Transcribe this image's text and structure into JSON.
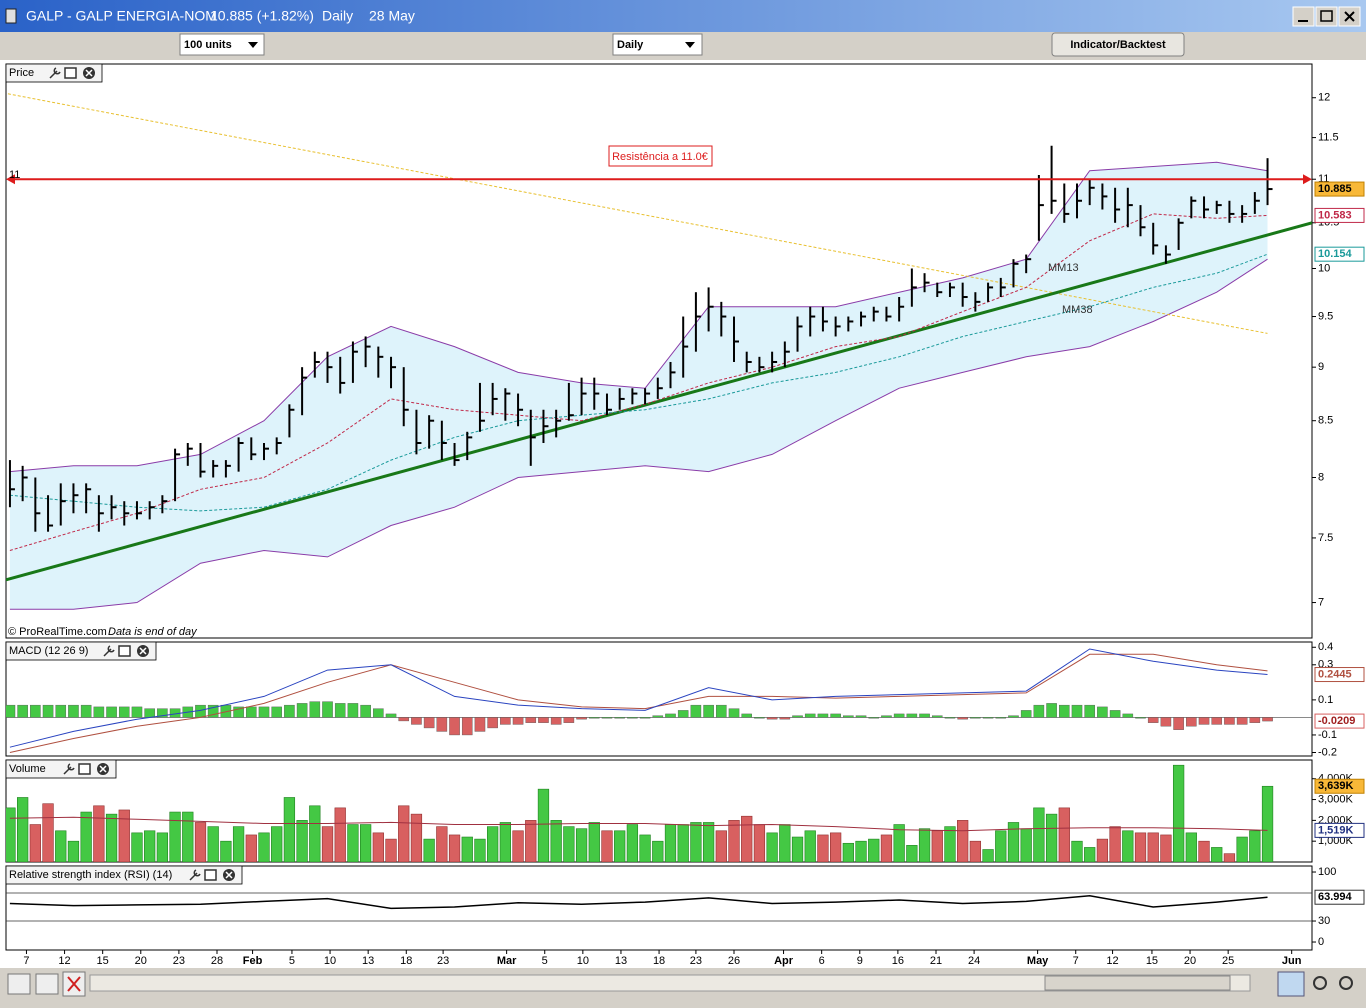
{
  "window": {
    "symbol": "GALP - GALP ENERGIA-NOM",
    "quote": "10.885 (+1.82%)",
    "period": "Daily",
    "date": "28 May"
  },
  "toolbar": {
    "units": "100 units",
    "period": "Daily",
    "button": "Indicator/Backtest"
  },
  "x_axis": {
    "xlim": [
      -0.31,
      102.5
    ],
    "xticks": [
      {
        "value": 1.3,
        "label": "7"
      },
      {
        "value": 4.3,
        "label": "12"
      },
      {
        "value": 7.3,
        "label": "15"
      },
      {
        "value": 10.3,
        "label": "20"
      },
      {
        "value": 13.3,
        "label": "23"
      },
      {
        "value": 16.3,
        "label": "28"
      },
      {
        "value": 19.1,
        "label": "Feb"
      },
      {
        "value": 22.2,
        "label": "5"
      },
      {
        "value": 25.2,
        "label": "10"
      },
      {
        "value": 28.2,
        "label": "13"
      },
      {
        "value": 31.2,
        "label": "18"
      },
      {
        "value": 34.1,
        "label": "23"
      },
      {
        "value": 39.1,
        "label": "Mar"
      },
      {
        "value": 42.1,
        "label": "5"
      },
      {
        "value": 45.1,
        "label": "10"
      },
      {
        "value": 48.1,
        "label": "13"
      },
      {
        "value": 51.1,
        "label": "18"
      },
      {
        "value": 54.0,
        "label": "23"
      },
      {
        "value": 57.0,
        "label": "26"
      },
      {
        "value": 60.9,
        "label": "Apr"
      },
      {
        "value": 63.9,
        "label": "6"
      },
      {
        "value": 66.9,
        "label": "9"
      },
      {
        "value": 69.9,
        "label": "16"
      },
      {
        "value": 72.9,
        "label": "21"
      },
      {
        "value": 75.9,
        "label": "24"
      },
      {
        "value": 80.9,
        "label": "May"
      },
      {
        "value": 83.9,
        "label": "7"
      },
      {
        "value": 86.8,
        "label": "12"
      },
      {
        "value": 89.9,
        "label": "15"
      },
      {
        "value": 92.9,
        "label": "20"
      },
      {
        "value": 95.9,
        "label": "25"
      },
      {
        "value": 100.9,
        "label": "Jun"
      }
    ]
  },
  "chart_data": [
    {
      "type": "ohlc",
      "title": "Price",
      "log_scale": true,
      "ylim": [
        6.74,
        12.44
      ],
      "yticks": [
        7,
        7.5,
        8,
        8.5,
        9,
        9.5,
        10,
        10.5,
        11,
        11.5,
        12
      ],
      "color": "#000000",
      "high": [
        8.15,
        8.1,
        8.0,
        7.85,
        7.95,
        7.95,
        7.95,
        7.85,
        7.85,
        7.8,
        7.8,
        7.8,
        7.85,
        8.25,
        8.3,
        8.3,
        8.15,
        8.15,
        8.35,
        8.35,
        8.3,
        8.35,
        8.65,
        9.0,
        9.15,
        9.15,
        9.1,
        9.25,
        9.3,
        9.2,
        9.1,
        9.0,
        8.6,
        8.55,
        8.5,
        8.3,
        8.4,
        8.85,
        8.85,
        8.8,
        8.75,
        8.6,
        8.6,
        8.6,
        8.85,
        8.9,
        8.9,
        8.75,
        8.8,
        8.8,
        8.8,
        8.9,
        9.05,
        9.5,
        9.75,
        9.8,
        9.65,
        9.5,
        9.15,
        9.1,
        9.15,
        9.25,
        9.5,
        9.6,
        9.6,
        9.5,
        9.5,
        9.55,
        9.6,
        9.6,
        9.7,
        10.0,
        9.95,
        9.85,
        9.85,
        9.85,
        9.75,
        9.85,
        9.9,
        10.1,
        10.15,
        11.05,
        11.4,
        10.95,
        10.95,
        11.0,
        10.95,
        10.9,
        10.9,
        10.7,
        10.5,
        10.25,
        10.55,
        10.8,
        10.8,
        10.75,
        10.75,
        10.7,
        10.85,
        11.25
      ],
      "low": [
        7.75,
        7.8,
        7.55,
        7.55,
        7.6,
        7.7,
        7.7,
        7.55,
        7.65,
        7.6,
        7.65,
        7.65,
        7.7,
        7.8,
        8.1,
        8.0,
        8.0,
        8.0,
        8.05,
        8.15,
        8.15,
        8.2,
        8.35,
        8.55,
        8.9,
        8.85,
        8.75,
        8.85,
        9.0,
        8.9,
        8.8,
        8.45,
        8.2,
        8.25,
        8.15,
        8.1,
        8.15,
        8.4,
        8.55,
        8.5,
        8.45,
        8.1,
        8.3,
        8.35,
        8.5,
        8.55,
        8.6,
        8.55,
        8.6,
        8.65,
        8.65,
        8.7,
        8.8,
        8.9,
        9.15,
        9.35,
        9.3,
        9.05,
        8.95,
        8.95,
        8.95,
        9.0,
        9.15,
        9.3,
        9.35,
        9.3,
        9.35,
        9.4,
        9.45,
        9.45,
        9.45,
        9.6,
        9.75,
        9.7,
        9.7,
        9.6,
        9.55,
        9.65,
        9.7,
        9.8,
        9.95,
        10.3,
        10.6,
        10.5,
        10.55,
        10.7,
        10.65,
        10.5,
        10.45,
        10.35,
        10.15,
        10.05,
        10.2,
        10.55,
        10.55,
        10.6,
        10.5,
        10.5,
        10.6,
        10.7
      ],
      "close": [
        7.9,
        8.0,
        7.7,
        7.6,
        7.8,
        7.85,
        7.9,
        7.7,
        7.75,
        7.7,
        7.7,
        7.75,
        7.8,
        8.2,
        8.25,
        8.05,
        8.1,
        8.1,
        8.3,
        8.2,
        8.25,
        8.3,
        8.6,
        8.9,
        9.05,
        9.0,
        8.85,
        9.15,
        9.2,
        9.1,
        9.0,
        8.6,
        8.3,
        8.5,
        8.3,
        8.15,
        8.35,
        8.5,
        8.7,
        8.75,
        8.6,
        8.35,
        8.45,
        8.5,
        8.55,
        8.75,
        8.75,
        8.6,
        8.7,
        8.75,
        8.75,
        8.8,
        8.95,
        9.2,
        9.5,
        9.6,
        9.5,
        9.25,
        9.05,
        9.0,
        9.05,
        9.15,
        9.4,
        9.5,
        9.45,
        9.4,
        9.45,
        9.5,
        9.55,
        9.5,
        9.6,
        9.8,
        9.85,
        9.75,
        9.8,
        9.7,
        9.65,
        9.8,
        9.8,
        10.05,
        10.1,
        10.7,
        10.75,
        10.6,
        10.75,
        10.9,
        10.8,
        10.65,
        10.7,
        10.45,
        10.25,
        10.15,
        10.5,
        10.75,
        10.65,
        10.7,
        10.6,
        10.6,
        10.75,
        10.885
      ],
      "bands": {
        "color": "#8a3ca8",
        "fill": "#def3fb",
        "x": [
          0,
          5,
          10,
          15,
          20,
          25,
          30,
          35,
          40,
          45,
          50,
          55,
          60,
          65,
          70,
          75,
          80,
          85,
          90,
          95,
          99
        ],
        "upper": [
          8.05,
          8.1,
          8.1,
          8.2,
          8.5,
          9.1,
          9.4,
          9.2,
          8.95,
          8.85,
          8.8,
          9.6,
          9.6,
          9.6,
          9.75,
          9.9,
          10.1,
          11.1,
          11.15,
          11.2,
          11.1
        ],
        "lower": [
          6.95,
          6.95,
          7.0,
          7.3,
          7.4,
          7.35,
          7.6,
          7.75,
          8.0,
          8.05,
          8.1,
          8.05,
          8.2,
          8.5,
          8.8,
          8.95,
          9.1,
          9.2,
          9.45,
          9.75,
          10.1
        ]
      },
      "moving_averages": [
        {
          "name": "MM13",
          "color": "#c02848",
          "x": [
            0,
            5,
            10,
            15,
            20,
            25,
            30,
            35,
            40,
            45,
            50,
            55,
            60,
            65,
            70,
            75,
            80,
            85,
            90,
            95,
            99
          ],
          "values": [
            7.4,
            7.55,
            7.7,
            7.9,
            8.0,
            8.3,
            8.7,
            8.6,
            8.55,
            8.5,
            8.65,
            8.85,
            9.0,
            9.2,
            9.3,
            9.55,
            9.8,
            10.3,
            10.6,
            10.55,
            10.583
          ]
        },
        {
          "name": "MM38",
          "color": "#1a9a9a",
          "x": [
            0,
            5,
            10,
            15,
            20,
            25,
            30,
            35,
            40,
            45,
            50,
            55,
            60,
            65,
            70,
            75,
            80,
            85,
            90,
            95,
            99
          ],
          "values": [
            7.85,
            7.8,
            7.75,
            7.72,
            7.75,
            7.9,
            8.15,
            8.35,
            8.5,
            8.55,
            8.6,
            8.7,
            8.85,
            8.95,
            9.1,
            9.3,
            9.45,
            9.6,
            9.8,
            9.95,
            10.154
          ]
        }
      ],
      "trend_lines": [
        {
          "color": "#e8c030",
          "x": [
            -0.16,
            99
          ],
          "values": [
            12.05,
            9.33
          ]
        },
        {
          "color": "#187818",
          "x": [
            -0.4,
            102.5
          ],
          "values": [
            7.17,
            10.5
          ]
        }
      ],
      "resistance": {
        "value": 11,
        "label": "Resistência a 11.0€",
        "color": "#dd1c1c"
      },
      "footer": {
        "source": "© ProRealTime.com",
        "note": "Data is end of day"
      }
    },
    {
      "type": "macd",
      "title": "MACD (12 26 9)",
      "ylim": [
        -0.22,
        0.43
      ],
      "yticks": [
        -0.2,
        -0.1,
        0.1,
        0.3,
        0.4
      ],
      "histogram": [
        0.07,
        0.07,
        0.07,
        0.07,
        0.07,
        0.07,
        0.07,
        0.06,
        0.06,
        0.06,
        0.06,
        0.05,
        0.05,
        0.05,
        0.06,
        0.07,
        0.07,
        0.07,
        0.06,
        0.06,
        0.06,
        0.06,
        0.07,
        0.08,
        0.09,
        0.09,
        0.08,
        0.08,
        0.07,
        0.05,
        0.02,
        -0.02,
        -0.04,
        -0.06,
        -0.08,
        -0.1,
        -0.1,
        -0.08,
        -0.06,
        -0.04,
        -0.04,
        -0.03,
        -0.03,
        -0.04,
        -0.03,
        -0.01,
        0.0,
        0.0,
        0.0,
        0.0,
        0.0,
        0.01,
        0.02,
        0.04,
        0.07,
        0.07,
        0.07,
        0.05,
        0.02,
        0.0,
        -0.01,
        -0.01,
        0.01,
        0.02,
        0.02,
        0.02,
        0.01,
        0.01,
        0.0,
        0.01,
        0.02,
        0.02,
        0.02,
        0.01,
        0.0,
        -0.01,
        0.0,
        0.0,
        0.0,
        0.01,
        0.04,
        0.07,
        0.08,
        0.07,
        0.07,
        0.07,
        0.06,
        0.04,
        0.02,
        0.0,
        -0.03,
        -0.05,
        -0.07,
        -0.05,
        -0.04,
        -0.04,
        -0.04,
        -0.04,
        -0.03,
        -0.0209
      ],
      "up_color": "#44c844",
      "down_color": "#d86060",
      "macd": {
        "color": "#2a44c0",
        "x": [
          0,
          5,
          10,
          15,
          20,
          25,
          30,
          35,
          40,
          45,
          50,
          55,
          60,
          65,
          70,
          75,
          80,
          85,
          90,
          95,
          99
        ],
        "values": [
          -0.17,
          -0.08,
          -0.01,
          0.04,
          0.12,
          0.27,
          0.3,
          0.12,
          0.07,
          0.05,
          0.04,
          0.17,
          0.1,
          0.12,
          0.13,
          0.14,
          0.15,
          0.39,
          0.32,
          0.27,
          0.2445
        ]
      },
      "signal": {
        "color": "#b05040",
        "x": [
          0,
          5,
          10,
          15,
          20,
          25,
          30,
          35,
          40,
          45,
          50,
          55,
          60,
          65,
          70,
          75,
          80,
          85,
          90,
          95,
          99
        ],
        "values": [
          -0.2,
          -0.12,
          -0.05,
          0.0,
          0.08,
          0.2,
          0.3,
          0.2,
          0.1,
          0.06,
          0.05,
          0.12,
          0.12,
          0.11,
          0.12,
          0.13,
          0.14,
          0.36,
          0.36,
          0.3,
          0.265
        ]
      }
    },
    {
      "type": "bar",
      "title": "Volume",
      "ylim": [
        0,
        4900
      ],
      "yticks": [
        {
          "value": 1000,
          "label": "1,000K"
        },
        {
          "value": 2000,
          "label": "2,000K"
        },
        {
          "value": 3000,
          "label": "3,000K"
        },
        {
          "value": 4000,
          "label": "4,000K"
        }
      ],
      "values": [
        2600,
        3100,
        1800,
        2800,
        1500,
        1000,
        2400,
        2700,
        2300,
        2500,
        1400,
        1500,
        1400,
        2400,
        2400,
        1900,
        1700,
        1000,
        1700,
        1300,
        1400,
        1700,
        3100,
        2000,
        2700,
        1700,
        2600,
        1800,
        1800,
        1400,
        1100,
        2700,
        2300,
        1100,
        1700,
        1300,
        1200,
        1100,
        1700,
        1900,
        1500,
        2000,
        3500,
        2000,
        1700,
        1600,
        1900,
        1500,
        1500,
        1800,
        1300,
        1000,
        1800,
        1800,
        1900,
        1900,
        1500,
        2000,
        2200,
        1800,
        1400,
        1800,
        1200,
        1500,
        1300,
        1400,
        900,
        1000,
        1100,
        1300,
        1800,
        800,
        1600,
        1500,
        1700,
        2000,
        1000,
        600,
        1500,
        1900,
        1600,
        2600,
        2300,
        2600,
        1000,
        700,
        1100,
        1700,
        1500,
        1400,
        1400,
        1300,
        4650,
        1400,
        1000,
        700,
        400,
        1200,
        1500,
        3639
      ],
      "last_label": "3,639K",
      "up_color": "#44c844",
      "down_color": "#d86060",
      "average": {
        "color": "#a03040",
        "x": [
          0,
          5,
          10,
          15,
          20,
          25,
          30,
          35,
          40,
          45,
          50,
          55,
          60,
          65,
          70,
          75,
          80,
          85,
          90,
          95,
          99
        ],
        "values": [
          2100,
          2150,
          2050,
          1950,
          1850,
          1850,
          1900,
          1800,
          1800,
          1850,
          1850,
          1750,
          1800,
          1700,
          1550,
          1500,
          1600,
          1650,
          1650,
          1600,
          1519
        ],
        "last_label": "1,519K"
      }
    },
    {
      "type": "line",
      "title": "Relative strength index (RSI) (14)",
      "ylim": [
        -11.4,
        108.6
      ],
      "yticks": [
        0,
        30,
        100
      ],
      "levels": [
        70,
        30
      ],
      "series": [
        {
          "color": "#000000",
          "x": [
            0,
            5,
            10,
            15,
            20,
            25,
            30,
            35,
            40,
            45,
            50,
            55,
            60,
            65,
            70,
            75,
            80,
            85,
            90,
            95,
            99
          ],
          "values": [
            55,
            52,
            53,
            54,
            58,
            62,
            48,
            50,
            56,
            54,
            57,
            63,
            55,
            57,
            60,
            55,
            58,
            66,
            50,
            57,
            63.994
          ]
        }
      ]
    }
  ]
}
